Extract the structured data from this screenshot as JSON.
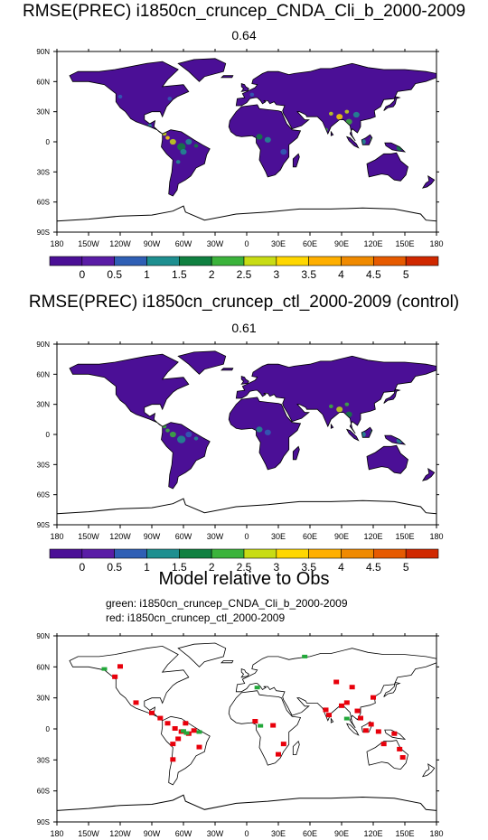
{
  "colors": {
    "ocean": "#ffffff",
    "land": "#4b0f96",
    "coast": "#000000",
    "scale": [
      "#4b0f96",
      "#5a1ca6",
      "#2f5fb5",
      "#1e8f90",
      "#0f8040",
      "#3bb33b",
      "#c8dc14",
      "#ffd700",
      "#ffaf00",
      "#f08a00",
      "#e65a00",
      "#d02800"
    ],
    "green_marker": "#22a83a",
    "red_marker": "#e8000b"
  },
  "axes": {
    "lon_ticks": [
      "180",
      "150W",
      "120W",
      "90W",
      "60W",
      "30W",
      "0",
      "30E",
      "60E",
      "90E",
      "120E",
      "150E",
      "180"
    ],
    "lat_ticks": [
      "90N",
      "60N",
      "30N",
      "0",
      "30S",
      "60S",
      "90S"
    ]
  },
  "colorbar_labels": [
    "0",
    "0.5",
    "1",
    "1.5",
    "2",
    "2.5",
    "3",
    "3.5",
    "4",
    "4.5",
    "5"
  ],
  "panels": [
    {
      "title": "RMSE(PREC) i1850cn_cruncep_CNDA_Cli_b_2000-2009",
      "subtitle": "0.64"
    },
    {
      "title": "RMSE(PREC) i1850cn_cruncep_ctl_2000-2009 (control)",
      "subtitle": "0.61"
    }
  ],
  "comparison": {
    "title": "Model relative to Obs",
    "legend_green": "green: i1850cn_cruncep_CNDA_Cli_b_2000-2009",
    "legend_red": "red: i1850cn_cruncep_ctl_2000-2009"
  }
}
